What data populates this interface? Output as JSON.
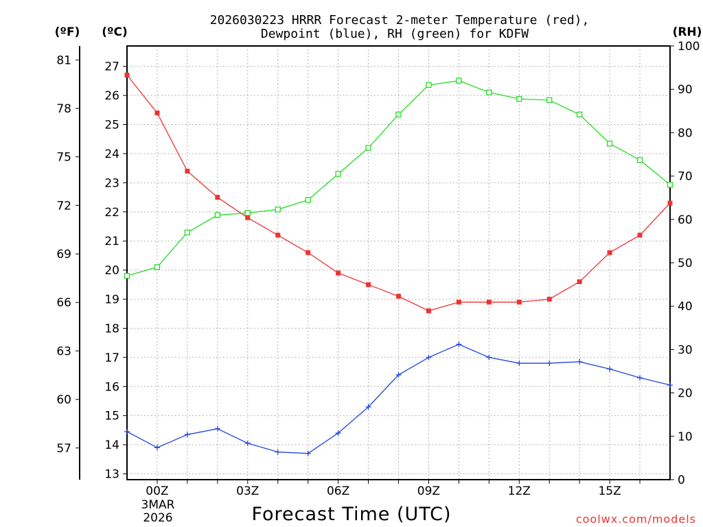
{
  "chart_data": {
    "type": "line",
    "title_line1": "2026030223 HRRR Forecast 2-meter Temperature (red),",
    "title_line2": "Dewpoint (blue), RH (green) for KDFW",
    "xlabel": "Forecast Time (UTC)",
    "watermark": "coolwx.com/models",
    "units": {
      "fahrenheit": "(ºF)",
      "celsius": "(ºC)",
      "rh": "(RH)"
    },
    "x_range_hours": [
      -1,
      17
    ],
    "x_ticks": [
      {
        "hour": 0,
        "label": "00Z"
      },
      {
        "hour": 3,
        "label": "03Z"
      },
      {
        "hour": 6,
        "label": "06Z"
      },
      {
        "hour": 9,
        "label": "09Z"
      },
      {
        "hour": 12,
        "label": "12Z"
      },
      {
        "hour": 15,
        "label": "15Z"
      }
    ],
    "date_label": {
      "line1": "3MAR",
      "line2": "2026"
    },
    "celsius_axis": {
      "range": [
        12.8,
        27.7
      ],
      "ticks": [
        13,
        14,
        15,
        16,
        17,
        18,
        19,
        20,
        21,
        22,
        23,
        24,
        25,
        26,
        27
      ]
    },
    "fahrenheit_ticks": [
      57,
      60,
      63,
      66,
      69,
      72,
      75,
      78,
      81
    ],
    "rh_axis": {
      "range": [
        0,
        100
      ],
      "ticks": [
        0,
        10,
        20,
        30,
        40,
        50,
        60,
        70,
        80,
        90,
        100
      ]
    },
    "series": [
      {
        "name": "Temperature",
        "color": "#ee3333",
        "marker": "filled-square",
        "axis": "celsius",
        "hours": [
          -1,
          0,
          1,
          2,
          3,
          4,
          5,
          6,
          7,
          8,
          9,
          10,
          11,
          12,
          13,
          14,
          15,
          16,
          17
        ],
        "values": [
          26.7,
          25.4,
          23.4,
          22.5,
          21.8,
          21.2,
          20.6,
          19.9,
          19.5,
          19.1,
          18.6,
          18.9,
          18.9,
          18.9,
          19.0,
          19.6,
          20.6,
          21.2,
          22.3
        ]
      },
      {
        "name": "Dewpoint",
        "color": "#2244dd",
        "marker": "plus",
        "axis": "celsius",
        "hours": [
          -1,
          0,
          1,
          2,
          3,
          4,
          5,
          6,
          7,
          8,
          9,
          10,
          11,
          12,
          13,
          14,
          15,
          16,
          17
        ],
        "values": [
          14.45,
          13.9,
          14.35,
          14.55,
          14.05,
          13.75,
          13.7,
          14.4,
          15.3,
          16.4,
          17.0,
          17.45,
          17.0,
          16.8,
          16.8,
          16.85,
          16.6,
          16.3,
          16.05
        ]
      },
      {
        "name": "RH",
        "color": "#22dd22",
        "marker": "open-square",
        "axis": "rh",
        "hours": [
          -1,
          0,
          1,
          2,
          3,
          4,
          5,
          6,
          7,
          8,
          9,
          10,
          11,
          12,
          13,
          14,
          15,
          16,
          17
        ],
        "values": [
          47,
          49,
          57,
          61,
          61.5,
          62.3,
          64.5,
          70.5,
          76.5,
          84.2,
          91,
          92,
          89.3,
          87.8,
          87.5,
          84.2,
          77.5,
          73.7,
          68
        ]
      }
    ]
  }
}
